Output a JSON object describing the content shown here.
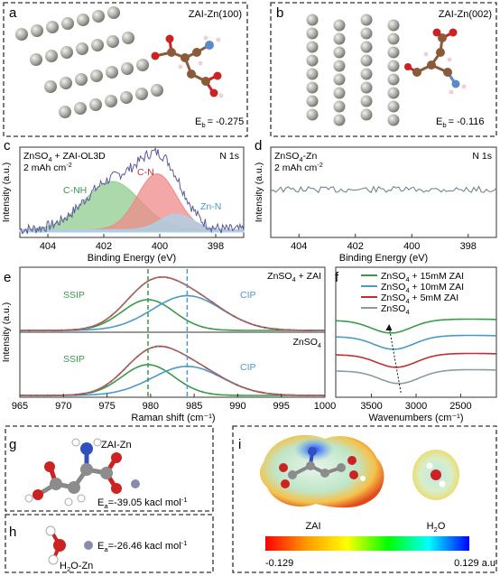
{
  "panels": {
    "a": {
      "letter": "a",
      "title": "ZAI-Zn(100)",
      "eb_label": "E",
      "eb_sub": "b",
      "eb_value": "= -0.275"
    },
    "b": {
      "letter": "b",
      "title": "ZAI-Zn(002)",
      "eb_label": "E",
      "eb_sub": "b",
      "eb_value": "= -0.116"
    },
    "c": {
      "letter": "c",
      "condition_pre": "ZnSO",
      "condition_sub": "4",
      "condition_post": " + ZAI-OL3D",
      "capacity": "2 mAh cm",
      "capacity_sup": "-2",
      "element": "N 1s",
      "peak_labels": [
        "C-NH",
        "C-N",
        "Zn-N"
      ]
    },
    "d": {
      "letter": "d",
      "condition_pre": "ZnSO",
      "condition_sub": "4",
      "condition_post": "-Zn",
      "capacity": "2 mAh cm",
      "capacity_sup": "-2",
      "element": "N 1s"
    },
    "e": {
      "letter": "e",
      "top_label_pre": "ZnSO",
      "top_label_sub": "4",
      "top_label_post": " + ZAI",
      "bottom_label_pre": "ZnSO",
      "bottom_label_sub": "4",
      "ssip": "SSIP",
      "cip": "CIP"
    },
    "f": {
      "letter": "f"
    },
    "g": {
      "letter": "g",
      "name": "ZAI-Zn",
      "ea_label": "E",
      "ea_sub": "a",
      "ea_value": "=-39.05 kacl mol",
      "ea_sup": "-1"
    },
    "h": {
      "letter": "h",
      "ea_label": "E",
      "ea_sub": "a",
      "ea_value": "=-26.46 kacl mol",
      "ea_sup": "-1",
      "name_pre": "H",
      "name_sub": "2",
      "name_post": "O-Zn"
    },
    "i": {
      "letter": "i",
      "zai": "ZAI",
      "h2o_pre": "H",
      "h2o_sub": "2",
      "h2o_post": "O",
      "scale_min": "-0.129",
      "scale_max": "0.129 a.u",
      "scale_colors": [
        "#ff0000",
        "#ff9900",
        "#ffff00",
        "#00ff00",
        "#00ffff",
        "#0000ff"
      ]
    }
  },
  "chart_data": [
    {
      "id": "c",
      "type": "line",
      "xlabel": "Binding Energy (eV)",
      "ylabel": "Intensity (a.u.)",
      "xlim": [
        405,
        397
      ],
      "reverse_x": true,
      "ticks": [
        404,
        402,
        400,
        398
      ],
      "series": [
        {
          "name": "C-NH",
          "center": 401.7,
          "height": 0.62,
          "width": 1.0,
          "color": "#8fcc8f"
        },
        {
          "name": "C-N",
          "center": 400.1,
          "height": 0.72,
          "width": 0.7,
          "color": "#ef8a8a"
        },
        {
          "name": "Zn-N",
          "center": 399.4,
          "height": 0.2,
          "width": 0.6,
          "color": "#a8d4ec"
        }
      ]
    },
    {
      "id": "d",
      "type": "line",
      "xlabel": "Binding Energy (eV)",
      "ylabel": "Intensity (a.u.)",
      "xlim": [
        405,
        397
      ],
      "reverse_x": true,
      "ticks": [
        404,
        402,
        400,
        398
      ]
    },
    {
      "id": "e",
      "type": "line",
      "xlabel": "Raman shift (cm⁻¹)",
      "ylabel": "Intensity (a.u.)",
      "xlim": [
        965,
        1000
      ],
      "ticks": [
        965,
        970,
        975,
        980,
        985,
        990,
        995,
        1000
      ],
      "ssip_center": 979.7,
      "cip_center": 984.2,
      "top": {
        "ssip_height": 0.55,
        "cip_height": 0.62,
        "width_ssip": 3.0,
        "width_cip": 4.0
      },
      "bottom": {
        "ssip_height": 0.55,
        "cip_height": 0.52,
        "width_ssip": 3.0,
        "width_cip": 4.0
      }
    },
    {
      "id": "f",
      "type": "line",
      "xlabel": "Wavenumbers (cm⁻¹)",
      "ylabel": "",
      "xlim": [
        3900,
        2100
      ],
      "reverse_x": true,
      "ticks": [
        3500,
        3000,
        2500
      ],
      "series": [
        {
          "name_pre": "ZnSO",
          "name_sub": "4",
          "name_post": " + 15mM ZAI",
          "color": "#3a9a4a",
          "dip_center": 3280
        },
        {
          "name_pre": "ZnSO",
          "name_sub": "4",
          "name_post": " + 10mM ZAI",
          "color": "#4a9ac8",
          "dip_center": 3250
        },
        {
          "name_pre": "ZnSO",
          "name_sub": "4",
          "name_post": " + 5mM ZAI",
          "color": "#c03030",
          "dip_center": 3220
        },
        {
          "name_pre": "ZnSO",
          "name_sub": "4",
          "name_post": "",
          "color": "#8a9aa6",
          "dip_center": 3190
        }
      ]
    }
  ]
}
